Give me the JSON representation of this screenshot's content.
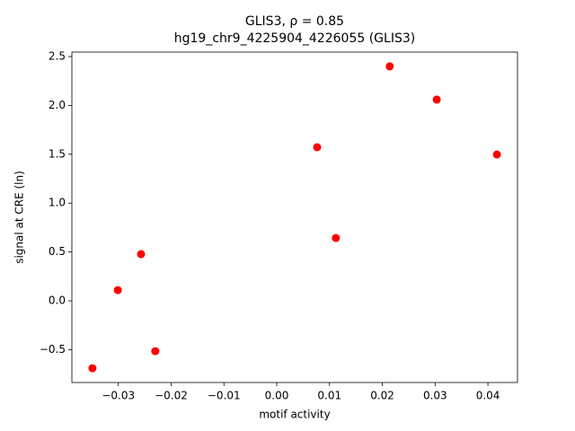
{
  "chart_data": {
    "type": "scatter",
    "title": "GLIS3, ρ = 0.85",
    "subtitle": "hg19_chr9_4225904_4226055 (GLIS3)",
    "x_label": "motif activity",
    "y_label": "signal at CRE (ln)",
    "color": "#ff0000",
    "x": [
      -0.0349,
      -0.0301,
      -0.0257,
      -0.023,
      0.00765,
      0.0112,
      0.0214,
      0.0303,
      0.0417
    ],
    "values": [
      -0.69,
      0.11,
      0.478,
      -0.515,
      1.572,
      0.643,
      2.4,
      2.06,
      1.498
    ],
    "xlim": [
      -0.0388,
      0.0456
    ],
    "ylim": [
      -0.836,
      2.546
    ],
    "xticks": [
      {
        "value": -0.03,
        "label": "−0.03"
      },
      {
        "value": -0.02,
        "label": "−0.02"
      },
      {
        "value": -0.01,
        "label": "−0.01"
      },
      {
        "value": 0,
        "label": "0.00"
      },
      {
        "value": 0.01,
        "label": "0.01"
      },
      {
        "value": 0.02,
        "label": "0.02"
      },
      {
        "value": 0.03,
        "label": "0.03"
      },
      {
        "value": 0.04,
        "label": "0.04"
      }
    ],
    "yticks": [
      {
        "value": -0.5,
        "label": "−0.5"
      },
      {
        "value": 0,
        "label": "0.0"
      },
      0.5,
      {
        "value": 1,
        "label": "1.0"
      },
      1.5,
      {
        "value": 2,
        "label": "2.0"
      },
      2.5
    ],
    "grid": false
  }
}
